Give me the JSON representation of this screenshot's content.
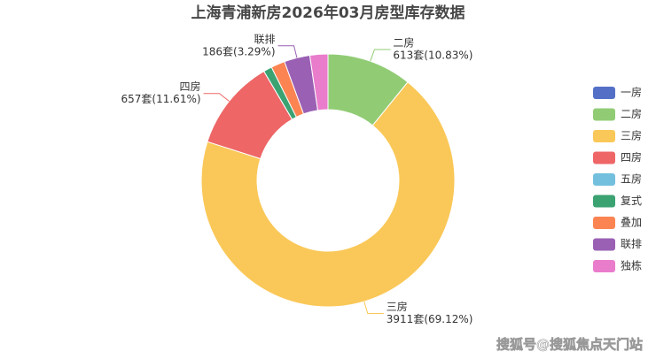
{
  "chart_data": {
    "type": "donut",
    "title": "上海青浦新房2026年03月房型库存数据",
    "categories": [
      "一房",
      "二房",
      "三房",
      "四房",
      "五房",
      "复式",
      "叠加",
      "联排",
      "独栋"
    ],
    "values": [
      0,
      613,
      3911,
      657,
      0,
      61,
      100,
      186,
      130
    ],
    "value_labels": [
      null,
      "613套(10.83%)",
      "3911套(69.12%)",
      "657套(11.61%)",
      null,
      null,
      null,
      "186套(3.29%)",
      null
    ],
    "colors": [
      "#5470c6",
      "#91cc75",
      "#fac858",
      "#ee6666",
      "#73c0de",
      "#3ba272",
      "#fc8452",
      "#9a60b4",
      "#ea7ccc"
    ],
    "legend": "right",
    "watermark": "搜狐号@搜狐焦点天门站"
  }
}
